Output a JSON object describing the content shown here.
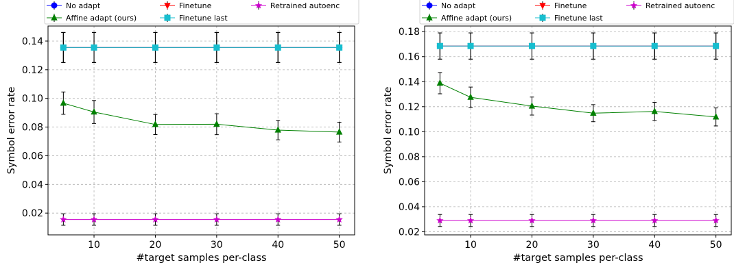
{
  "colors": {
    "no_adapt": "#0000ff",
    "affine": "#008000",
    "finetune": "#ff0000",
    "finetune_last": "#17becf",
    "retrained": "#cc00cc",
    "grid": "#b0b0b0",
    "errorbar": "#000000"
  },
  "legend_labels": [
    "No adapt",
    "Affine adapt (ours)",
    "Finetune",
    "Finetune last",
    "Retrained autoenc"
  ],
  "chart_data": [
    {
      "type": "line",
      "xlabel": "#target samples per-class",
      "ylabel": "Symbol error rate",
      "x": [
        5,
        10,
        20,
        30,
        40,
        50
      ],
      "x_ticks": [
        10,
        20,
        30,
        40,
        50
      ],
      "xlim": [
        2.5,
        52.5
      ],
      "ylim": [
        0.0048,
        0.1505
      ],
      "y_ticks": [
        0.02,
        0.04,
        0.06,
        0.08,
        0.1,
        0.12,
        0.14
      ],
      "y_tick_labels": [
        "0.02",
        "0.04",
        "0.06",
        "0.08",
        "0.10",
        "0.12",
        "0.14"
      ],
      "grid": true,
      "legend_position": "top, above plot",
      "series": [
        {
          "name": "No adapt",
          "color": "#0000ff",
          "marker": "circle",
          "values": [
            0.1355,
            0.1355,
            0.1355,
            0.1355,
            0.1355,
            0.1355
          ],
          "err": [
            0.0105,
            0.0105,
            0.0105,
            0.0105,
            0.0105,
            0.0105
          ]
        },
        {
          "name": "Affine adapt (ours)",
          "color": "#008000",
          "marker": "triangle-up",
          "values": [
            0.0967,
            0.0905,
            0.0818,
            0.082,
            0.0779,
            0.0765
          ],
          "err": [
            0.0078,
            0.008,
            0.007,
            0.0073,
            0.0068,
            0.0069
          ]
        },
        {
          "name": "Finetune",
          "color": "#ff0000",
          "marker": "triangle-down",
          "values": [
            0.1355,
            0.1355,
            0.1355,
            0.1355,
            0.1355,
            0.1355
          ],
          "err": [
            0.0105,
            0.0105,
            0.0105,
            0.0105,
            0.0105,
            0.0105
          ]
        },
        {
          "name": "Finetune last",
          "color": "#17becf",
          "marker": "square",
          "values": [
            0.1355,
            0.1355,
            0.1355,
            0.1355,
            0.1355,
            0.1355
          ],
          "err": [
            0.0105,
            0.0105,
            0.0105,
            0.0105,
            0.0105,
            0.0105
          ]
        },
        {
          "name": "Retrained autoenc",
          "color": "#cc00cc",
          "marker": "star",
          "values": [
            0.0155,
            0.0155,
            0.0155,
            0.0155,
            0.0155,
            0.0155
          ],
          "err": [
            0.004,
            0.004,
            0.004,
            0.004,
            0.004,
            0.004
          ]
        }
      ]
    },
    {
      "type": "line",
      "xlabel": "#target samples per-class",
      "ylabel": "Symbol error rate",
      "x": [
        5,
        10,
        20,
        30,
        40,
        50
      ],
      "x_ticks": [
        10,
        20,
        30,
        40,
        50
      ],
      "xlim": [
        2.5,
        52.5
      ],
      "ylim": [
        0.0175,
        0.1845
      ],
      "y_ticks": [
        0.02,
        0.04,
        0.06,
        0.08,
        0.1,
        0.12,
        0.14,
        0.16,
        0.18
      ],
      "y_tick_labels": [
        "0.02",
        "0.04",
        "0.06",
        "0.08",
        "0.10",
        "0.12",
        "0.14",
        "0.16",
        "0.18"
      ],
      "grid": true,
      "legend_position": "top, above plot",
      "series": [
        {
          "name": "No adapt",
          "color": "#0000ff",
          "marker": "circle",
          "values": [
            0.1685,
            0.1685,
            0.1685,
            0.1685,
            0.1685,
            0.1685
          ],
          "err": [
            0.0105,
            0.0105,
            0.0105,
            0.0105,
            0.0105,
            0.0105
          ]
        },
        {
          "name": "Affine adapt (ours)",
          "color": "#008000",
          "marker": "triangle-up",
          "values": [
            0.1388,
            0.1275,
            0.1205,
            0.1148,
            0.1162,
            0.1118
          ],
          "err": [
            0.0085,
            0.0082,
            0.0072,
            0.0068,
            0.0072,
            0.0072
          ]
        },
        {
          "name": "Finetune",
          "color": "#ff0000",
          "marker": "triangle-down",
          "values": [
            0.1685,
            0.1685,
            0.1685,
            0.1685,
            0.1685,
            0.1685
          ],
          "err": [
            0.0105,
            0.0105,
            0.0105,
            0.0105,
            0.0105,
            0.0105
          ]
        },
        {
          "name": "Finetune last",
          "color": "#17becf",
          "marker": "square",
          "values": [
            0.1685,
            0.1685,
            0.1685,
            0.1685,
            0.1685,
            0.1685
          ],
          "err": [
            0.0105,
            0.0105,
            0.0105,
            0.0105,
            0.0105,
            0.0105
          ]
        },
        {
          "name": "Retrained autoenc",
          "color": "#cc00cc",
          "marker": "star",
          "values": [
            0.029,
            0.029,
            0.029,
            0.029,
            0.029,
            0.029
          ],
          "err": [
            0.0048,
            0.0048,
            0.0048,
            0.0048,
            0.0048,
            0.0048
          ]
        }
      ]
    }
  ]
}
